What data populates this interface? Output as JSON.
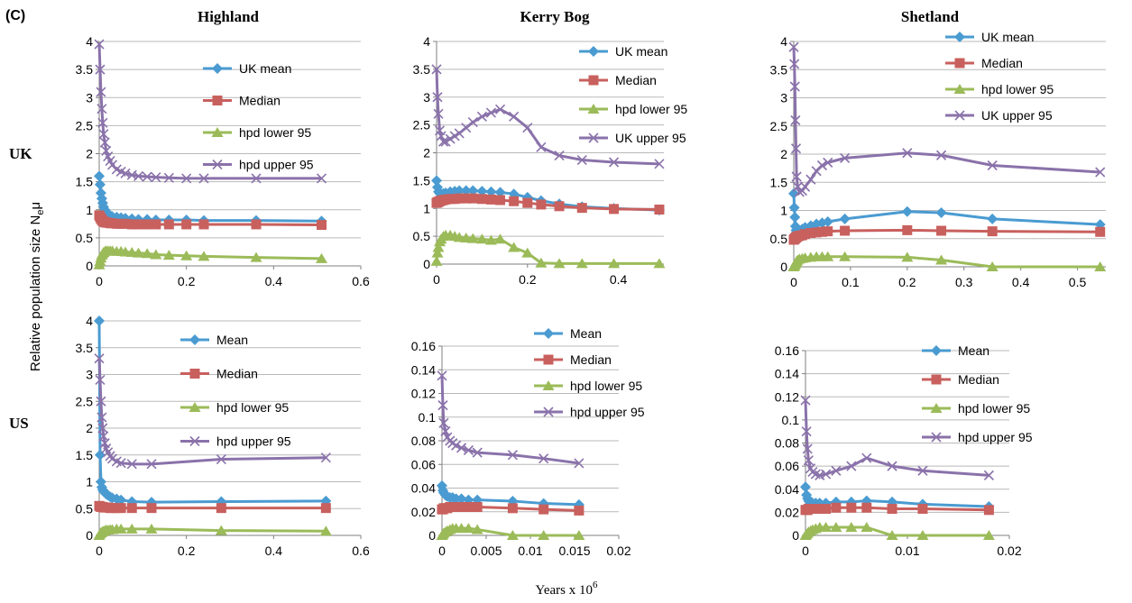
{
  "figure": {
    "panel_label": "(C)",
    "columns": [
      "Highland",
      "Kerry Bog",
      "Shetland"
    ],
    "rows": [
      "UK",
      "US"
    ],
    "ylabel_main": "Relative population size N",
    "ylabel_sub": "e",
    "ylabel_mu": "μ",
    "xlabel_main": "Years x 10",
    "xlabel_exp": "6",
    "colors": {
      "mean": "#4a9bd1",
      "median": "#c8605e",
      "lower": "#9bbb59",
      "upper": "#8a72aa",
      "grid": "#b9b9b9",
      "axis": "#7f7f7f"
    }
  },
  "chart_data": [
    {
      "type": "line",
      "title": "Highland",
      "row": "UK",
      "xlim": [
        0,
        0.6
      ],
      "xticks": [
        "0",
        "0.2",
        "0.4",
        "0.6"
      ],
      "ylim": [
        0,
        4
      ],
      "yticks": [
        "0",
        "0.5",
        "1",
        "1.5",
        "2",
        "2.5",
        "3",
        "3.5",
        "4"
      ],
      "x": [
        0,
        0.002,
        0.004,
        0.006,
        0.008,
        0.01,
        0.013,
        0.016,
        0.02,
        0.025,
        0.03,
        0.04,
        0.05,
        0.06,
        0.075,
        0.09,
        0.11,
        0.13,
        0.16,
        0.2,
        0.24,
        0.36,
        0.51
      ],
      "series": [
        {
          "name": "UK mean",
          "values": [
            1.6,
            1.45,
            1.3,
            1.2,
            1.12,
            1.05,
            1.0,
            0.95,
            0.92,
            0.9,
            0.88,
            0.87,
            0.86,
            0.85,
            0.84,
            0.83,
            0.83,
            0.82,
            0.82,
            0.82,
            0.81,
            0.81,
            0.8
          ]
        },
        {
          "name": "Median",
          "values": [
            0.9,
            0.87,
            0.84,
            0.82,
            0.8,
            0.79,
            0.78,
            0.77,
            0.77,
            0.76,
            0.76,
            0.75,
            0.75,
            0.75,
            0.74,
            0.74,
            0.74,
            0.74,
            0.74,
            0.74,
            0.74,
            0.74,
            0.73
          ]
        },
        {
          "name": "hpd lower 95",
          "values": [
            0.02,
            0.08,
            0.14,
            0.19,
            0.22,
            0.24,
            0.26,
            0.27,
            0.27,
            0.27,
            0.27,
            0.26,
            0.26,
            0.25,
            0.24,
            0.23,
            0.22,
            0.2,
            0.19,
            0.18,
            0.17,
            0.15,
            0.13
          ]
        },
        {
          "name": "hpd upper 95",
          "values": [
            3.95,
            3.5,
            3.1,
            2.8,
            2.55,
            2.35,
            2.2,
            2.05,
            1.95,
            1.87,
            1.8,
            1.72,
            1.68,
            1.65,
            1.62,
            1.6,
            1.59,
            1.58,
            1.57,
            1.56,
            1.56,
            1.56,
            1.56
          ]
        }
      ]
    },
    {
      "type": "line",
      "title": "Kerry Bog",
      "row": "UK",
      "xlim": [
        0,
        0.5
      ],
      "xticks": [
        "0",
        "0.2",
        "0.4"
      ],
      "ylim": [
        0,
        4
      ],
      "yticks": [
        "0",
        "0.5",
        "1",
        "1.5",
        "2",
        "2.5",
        "3",
        "3.5",
        "4"
      ],
      "x": [
        0,
        0.002,
        0.004,
        0.007,
        0.01,
        0.015,
        0.02,
        0.03,
        0.04,
        0.05,
        0.065,
        0.08,
        0.1,
        0.12,
        0.14,
        0.17,
        0.2,
        0.23,
        0.27,
        0.32,
        0.39,
        0.49
      ],
      "series": [
        {
          "name": "UK mean",
          "values": [
            1.5,
            1.38,
            1.3,
            1.27,
            1.26,
            1.27,
            1.28,
            1.3,
            1.31,
            1.32,
            1.32,
            1.32,
            1.31,
            1.3,
            1.29,
            1.26,
            1.2,
            1.14,
            1.08,
            1.03,
            1.0,
            0.97
          ]
        },
        {
          "name": "Median",
          "values": [
            1.1,
            1.11,
            1.12,
            1.13,
            1.14,
            1.15,
            1.16,
            1.17,
            1.17,
            1.18,
            1.18,
            1.18,
            1.17,
            1.16,
            1.15,
            1.13,
            1.1,
            1.07,
            1.04,
            1.01,
            0.99,
            0.98
          ]
        },
        {
          "name": "hpd lower 95",
          "values": [
            0.05,
            0.2,
            0.3,
            0.4,
            0.45,
            0.5,
            0.52,
            0.52,
            0.5,
            0.48,
            0.47,
            0.46,
            0.45,
            0.43,
            0.45,
            0.3,
            0.2,
            0.02,
            0.01,
            0.01,
            0.01,
            0.01
          ]
        },
        {
          "name": "UK upper 95",
          "values": [
            3.5,
            3.0,
            2.7,
            2.4,
            2.3,
            2.2,
            2.2,
            2.25,
            2.3,
            2.35,
            2.45,
            2.55,
            2.65,
            2.72,
            2.78,
            2.65,
            2.45,
            2.1,
            1.95,
            1.87,
            1.83,
            1.8
          ]
        }
      ]
    },
    {
      "type": "line",
      "title": "Shetland",
      "row": "UK",
      "xlim": [
        0,
        0.55
      ],
      "xticks": [
        "0",
        "0.1",
        "0.2",
        "0.3",
        "0.4",
        "0.5"
      ],
      "ylim": [
        0,
        4
      ],
      "yticks": [
        "0",
        "0.5",
        "1",
        "1.5",
        "2",
        "2.5",
        "3",
        "3.5",
        "4"
      ],
      "x": [
        0,
        0.001,
        0.002,
        0.003,
        0.004,
        0.005,
        0.007,
        0.01,
        0.015,
        0.02,
        0.03,
        0.04,
        0.05,
        0.06,
        0.09,
        0.2,
        0.26,
        0.35,
        0.54
      ],
      "series": [
        {
          "name": "UK mean",
          "values": [
            1.3,
            1.05,
            0.88,
            0.72,
            0.65,
            0.62,
            0.62,
            0.64,
            0.67,
            0.7,
            0.73,
            0.76,
            0.78,
            0.8,
            0.85,
            0.98,
            0.96,
            0.85,
            0.75
          ]
        },
        {
          "name": "Median",
          "values": [
            0.48,
            0.49,
            0.5,
            0.51,
            0.52,
            0.53,
            0.54,
            0.55,
            0.56,
            0.58,
            0.6,
            0.61,
            0.62,
            0.63,
            0.64,
            0.65,
            0.64,
            0.63,
            0.62
          ]
        },
        {
          "name": "hpd lower 95",
          "values": [
            0.0,
            0.02,
            0.04,
            0.06,
            0.08,
            0.1,
            0.12,
            0.14,
            0.15,
            0.16,
            0.17,
            0.18,
            0.18,
            0.18,
            0.18,
            0.17,
            0.12,
            0.0,
            0.0
          ]
        },
        {
          "name": "UK upper 95",
          "values": [
            3.9,
            3.6,
            3.2,
            2.6,
            2.1,
            1.6,
            1.42,
            1.33,
            1.35,
            1.42,
            1.55,
            1.7,
            1.8,
            1.85,
            1.93,
            2.02,
            1.98,
            1.8,
            1.68
          ]
        }
      ]
    },
    {
      "type": "line",
      "title": "Highland",
      "row": "US",
      "xlim": [
        0,
        0.6
      ],
      "xticks": [
        "0",
        "0.2",
        "0.4",
        "0.6"
      ],
      "ylim": [
        0,
        4
      ],
      "yticks": [
        "0",
        "0.5",
        "1",
        "1.5",
        "2",
        "2.5",
        "3",
        "3.5",
        "4"
      ],
      "x": [
        0,
        0.002,
        0.004,
        0.006,
        0.008,
        0.01,
        0.013,
        0.016,
        0.02,
        0.025,
        0.03,
        0.04,
        0.05,
        0.075,
        0.12,
        0.28,
        0.52
      ],
      "series": [
        {
          "name": "Mean",
          "values": [
            4.0,
            1.5,
            1.0,
            0.9,
            0.85,
            0.82,
            0.8,
            0.77,
            0.75,
            0.72,
            0.7,
            0.68,
            0.66,
            0.63,
            0.62,
            0.63,
            0.64
          ]
        },
        {
          "name": "Median",
          "values": [
            0.55,
            0.54,
            0.53,
            0.53,
            0.53,
            0.52,
            0.52,
            0.52,
            0.52,
            0.51,
            0.51,
            0.51,
            0.51,
            0.51,
            0.51,
            0.51,
            0.51
          ]
        },
        {
          "name": "hpd lower 95",
          "values": [
            0.0,
            0.03,
            0.05,
            0.06,
            0.07,
            0.08,
            0.09,
            0.1,
            0.1,
            0.11,
            0.11,
            0.12,
            0.12,
            0.12,
            0.12,
            0.09,
            0.08
          ]
        },
        {
          "name": "hpd upper 95",
          "values": [
            3.3,
            2.9,
            2.5,
            2.2,
            2.0,
            1.85,
            1.72,
            1.62,
            1.55,
            1.48,
            1.43,
            1.38,
            1.35,
            1.33,
            1.33,
            1.42,
            1.45
          ]
        }
      ]
    },
    {
      "type": "line",
      "title": "Kerry Bog",
      "row": "US",
      "xlim": [
        0,
        0.02
      ],
      "xticks": [
        "0",
        "0.005",
        "0.01",
        "0.015",
        "0.02"
      ],
      "ylim": [
        0,
        0.16
      ],
      "yticks": [
        "0",
        "0.02",
        "0.04",
        "0.06",
        "0.08",
        "0.1",
        "0.12",
        "0.14",
        "0.16"
      ],
      "x": [
        0,
        0.0001,
        0.0002,
        0.0004,
        0.0006,
        0.0009,
        0.0012,
        0.0016,
        0.0022,
        0.003,
        0.004,
        0.008,
        0.0115,
        0.0155
      ],
      "series": [
        {
          "name": "Mean",
          "values": [
            0.042,
            0.038,
            0.036,
            0.034,
            0.033,
            0.032,
            0.032,
            0.031,
            0.031,
            0.03,
            0.03,
            0.029,
            0.027,
            0.026
          ]
        },
        {
          "name": "Median",
          "values": [
            0.022,
            0.022,
            0.023,
            0.023,
            0.023,
            0.024,
            0.024,
            0.024,
            0.024,
            0.024,
            0.024,
            0.023,
            0.022,
            0.021
          ]
        },
        {
          "name": "hpd lower 95",
          "values": [
            0.0,
            0.001,
            0.002,
            0.003,
            0.004,
            0.005,
            0.006,
            0.006,
            0.006,
            0.006,
            0.005,
            0.0,
            0.0,
            0.0
          ]
        },
        {
          "name": "hpd upper 95",
          "values": [
            0.135,
            0.11,
            0.095,
            0.088,
            0.083,
            0.08,
            0.078,
            0.076,
            0.074,
            0.072,
            0.07,
            0.068,
            0.065,
            0.061
          ]
        }
      ]
    },
    {
      "type": "line",
      "title": "Shetland",
      "row": "US",
      "xlim": [
        0,
        0.02
      ],
      "xticks": [
        "0",
        "0.01",
        "0.02"
      ],
      "ylim": [
        0,
        0.16
      ],
      "yticks": [
        "0",
        "0.02",
        "0.04",
        "0.06",
        "0.08",
        "0.1",
        "0.12",
        "0.14",
        "0.16"
      ],
      "x": [
        0,
        0.0001,
        0.0002,
        0.0003,
        0.0005,
        0.0007,
        0.001,
        0.0014,
        0.002,
        0.003,
        0.0045,
        0.006,
        0.0085,
        0.0115,
        0.018
      ],
      "series": [
        {
          "name": "Mean",
          "values": [
            0.042,
            0.035,
            0.032,
            0.03,
            0.029,
            0.028,
            0.028,
            0.028,
            0.028,
            0.029,
            0.029,
            0.03,
            0.029,
            0.027,
            0.025
          ]
        },
        {
          "name": "Median",
          "values": [
            0.022,
            0.022,
            0.022,
            0.023,
            0.023,
            0.023,
            0.023,
            0.023,
            0.023,
            0.024,
            0.024,
            0.024,
            0.023,
            0.023,
            0.022
          ]
        },
        {
          "name": "hpd lower 95",
          "values": [
            0.0,
            0.001,
            0.002,
            0.003,
            0.004,
            0.005,
            0.006,
            0.007,
            0.007,
            0.007,
            0.007,
            0.007,
            0.0,
            0.0,
            0.0
          ]
        },
        {
          "name": "hpd upper 95",
          "values": [
            0.117,
            0.09,
            0.075,
            0.065,
            0.058,
            0.055,
            0.053,
            0.052,
            0.053,
            0.056,
            0.06,
            0.067,
            0.06,
            0.056,
            0.052
          ]
        }
      ]
    }
  ]
}
